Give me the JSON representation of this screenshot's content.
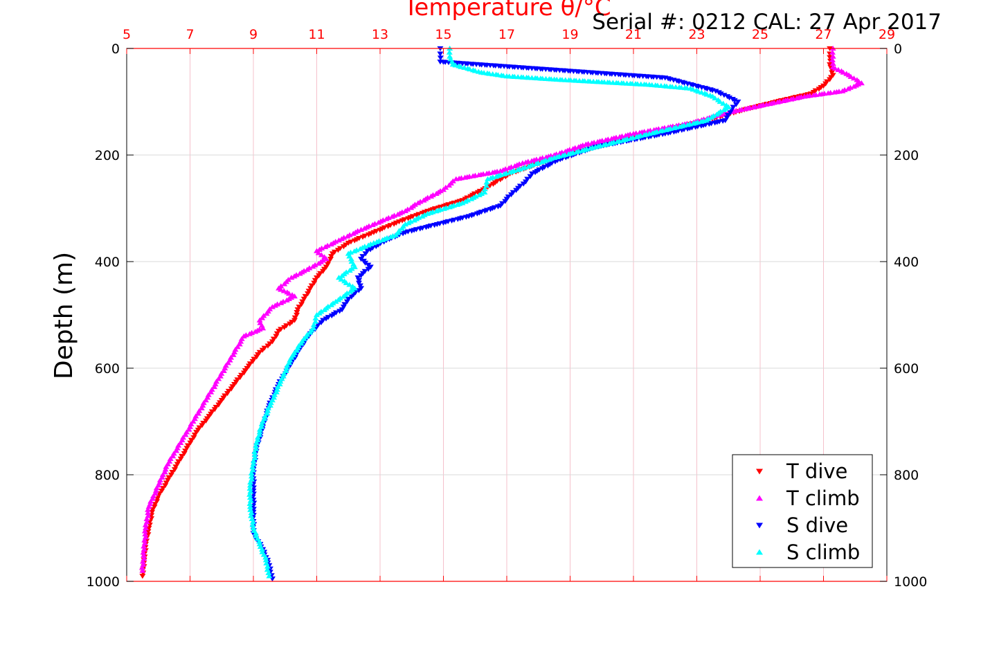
{
  "chart_data": {
    "type": "scatter",
    "title": "Temperature θ/°C",
    "annotation": "Serial #: 0212  CAL: 27 Apr 2017",
    "ylabel": "Depth (m)",
    "xlim": [
      5,
      29
    ],
    "ylim": [
      0,
      1000
    ],
    "y_reversed": true,
    "x_ticks": [
      5,
      7,
      9,
      11,
      13,
      15,
      17,
      19,
      21,
      23,
      25,
      27,
      29
    ],
    "y_ticks": [
      0,
      200,
      400,
      600,
      800,
      1000
    ],
    "grid": true,
    "legend_position": "bottom-right",
    "colors": {
      "axis_top": "#ff0000",
      "grid_vertical": "#f5c0cb",
      "grid_horizontal": "#d9d9d9"
    },
    "series": [
      {
        "name": "T dive",
        "marker": "triangle-down",
        "color": "#ff0000",
        "points": [
          [
            27.2,
            0
          ],
          [
            27.2,
            10
          ],
          [
            27.2,
            30
          ],
          [
            27.3,
            50
          ],
          [
            27.0,
            70
          ],
          [
            26.6,
            85
          ],
          [
            25.5,
            100
          ],
          [
            24.5,
            115
          ],
          [
            23.3,
            135
          ],
          [
            21.5,
            160
          ],
          [
            19.8,
            185
          ],
          [
            18.3,
            210
          ],
          [
            17.1,
            235
          ],
          [
            16.4,
            260
          ],
          [
            15.6,
            285
          ],
          [
            14.5,
            305
          ],
          [
            13.6,
            325
          ],
          [
            12.8,
            345
          ],
          [
            12.0,
            365
          ],
          [
            11.5,
            385
          ],
          [
            11.3,
            410
          ],
          [
            11.0,
            430
          ],
          [
            10.8,
            450
          ],
          [
            10.6,
            470
          ],
          [
            10.4,
            490
          ],
          [
            10.3,
            510
          ],
          [
            9.8,
            530
          ],
          [
            9.6,
            550
          ],
          [
            9.2,
            570
          ],
          [
            8.8,
            600
          ],
          [
            8.4,
            630
          ],
          [
            8.0,
            660
          ],
          [
            7.6,
            690
          ],
          [
            7.2,
            720
          ],
          [
            6.9,
            750
          ],
          [
            6.6,
            780
          ],
          [
            6.3,
            810
          ],
          [
            6.0,
            840
          ],
          [
            5.8,
            870
          ],
          [
            5.7,
            900
          ],
          [
            5.6,
            930
          ],
          [
            5.55,
            960
          ],
          [
            5.5,
            990
          ]
        ]
      },
      {
        "name": "T climb",
        "marker": "triangle-up",
        "color": "#ff00ff",
        "points": [
          [
            27.3,
            0
          ],
          [
            27.3,
            15
          ],
          [
            27.3,
            35
          ],
          [
            27.8,
            50
          ],
          [
            28.2,
            65
          ],
          [
            27.6,
            80
          ],
          [
            26.4,
            90
          ],
          [
            25.2,
            105
          ],
          [
            24.0,
            120
          ],
          [
            22.8,
            140
          ],
          [
            21.0,
            160
          ],
          [
            19.5,
            180
          ],
          [
            18.5,
            200
          ],
          [
            17.5,
            215
          ],
          [
            16.8,
            230
          ],
          [
            15.4,
            245
          ],
          [
            15.0,
            265
          ],
          [
            14.2,
            290
          ],
          [
            13.8,
            305
          ],
          [
            13.2,
            320
          ],
          [
            12.4,
            340
          ],
          [
            11.7,
            360
          ],
          [
            11.0,
            380
          ],
          [
            11.3,
            395
          ],
          [
            10.7,
            415
          ],
          [
            10.2,
            430
          ],
          [
            9.8,
            450
          ],
          [
            10.3,
            465
          ],
          [
            9.6,
            485
          ],
          [
            9.2,
            510
          ],
          [
            9.3,
            525
          ],
          [
            8.7,
            540
          ],
          [
            8.5,
            560
          ],
          [
            8.2,
            590
          ],
          [
            7.9,
            620
          ],
          [
            7.5,
            660
          ],
          [
            7.1,
            700
          ],
          [
            6.7,
            740
          ],
          [
            6.3,
            780
          ],
          [
            6.0,
            820
          ],
          [
            5.7,
            860
          ],
          [
            5.6,
            900
          ],
          [
            5.55,
            940
          ],
          [
            5.5,
            980
          ]
        ]
      },
      {
        "name": "S dive",
        "marker": "triangle-down",
        "color": "#0000ff",
        "points": [
          [
            14.9,
            0
          ],
          [
            14.9,
            10
          ],
          [
            14.9,
            25
          ],
          [
            22.0,
            55
          ],
          [
            23.6,
            80
          ],
          [
            24.3,
            100
          ],
          [
            24.1,
            115
          ],
          [
            23.9,
            135
          ],
          [
            22.0,
            160
          ],
          [
            19.8,
            185
          ],
          [
            18.6,
            210
          ],
          [
            17.8,
            235
          ],
          [
            17.6,
            250
          ],
          [
            17.2,
            270
          ],
          [
            16.8,
            295
          ],
          [
            15.8,
            315
          ],
          [
            14.8,
            330
          ],
          [
            13.8,
            345
          ],
          [
            13.2,
            360
          ],
          [
            12.6,
            380
          ],
          [
            12.4,
            395
          ],
          [
            12.7,
            410
          ],
          [
            12.3,
            430
          ],
          [
            12.4,
            450
          ],
          [
            12.0,
            470
          ],
          [
            11.8,
            490
          ],
          [
            11.2,
            510
          ],
          [
            10.8,
            535
          ],
          [
            10.5,
            560
          ],
          [
            10.2,
            590
          ],
          [
            9.8,
            630
          ],
          [
            9.5,
            670
          ],
          [
            9.3,
            710
          ],
          [
            9.1,
            750
          ],
          [
            9.0,
            790
          ],
          [
            9.0,
            830
          ],
          [
            9.0,
            870
          ],
          [
            9.0,
            910
          ],
          [
            9.3,
            940
          ],
          [
            9.5,
            970
          ],
          [
            9.6,
            995
          ]
        ]
      },
      {
        "name": "S climb",
        "marker": "triangle-up",
        "color": "#00ffff",
        "points": [
          [
            15.2,
            0
          ],
          [
            15.2,
            15
          ],
          [
            15.3,
            30
          ],
          [
            16.2,
            45
          ],
          [
            17.0,
            52
          ],
          [
            18.5,
            58
          ],
          [
            20.0,
            63
          ],
          [
            21.5,
            68
          ],
          [
            22.8,
            75
          ],
          [
            23.5,
            90
          ],
          [
            24.0,
            110
          ],
          [
            23.3,
            135
          ],
          [
            21.5,
            160
          ],
          [
            19.8,
            185
          ],
          [
            18.5,
            205
          ],
          [
            17.5,
            225
          ],
          [
            16.4,
            245
          ],
          [
            16.3,
            270
          ],
          [
            15.6,
            290
          ],
          [
            14.5,
            310
          ],
          [
            13.8,
            330
          ],
          [
            13.5,
            350
          ],
          [
            12.8,
            365
          ],
          [
            12.0,
            385
          ],
          [
            12.2,
            410
          ],
          [
            11.7,
            430
          ],
          [
            12.2,
            450
          ],
          [
            11.6,
            475
          ],
          [
            11.0,
            500
          ],
          [
            10.9,
            525
          ],
          [
            10.6,
            545
          ],
          [
            10.2,
            580
          ],
          [
            9.9,
            620
          ],
          [
            9.6,
            660
          ],
          [
            9.3,
            700
          ],
          [
            9.1,
            740
          ],
          [
            9.0,
            780
          ],
          [
            8.9,
            820
          ],
          [
            8.9,
            860
          ],
          [
            9.0,
            900
          ],
          [
            9.2,
            930
          ],
          [
            9.4,
            960
          ],
          [
            9.5,
            990
          ]
        ]
      }
    ]
  }
}
